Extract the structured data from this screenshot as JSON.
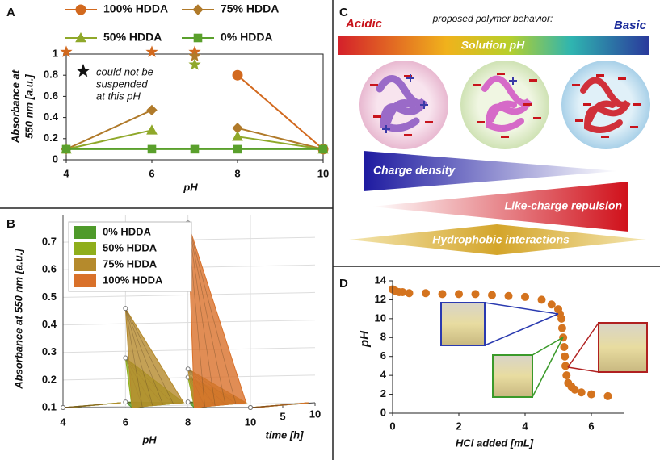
{
  "chart_data": [
    {
      "type": "line",
      "panel_label": "A",
      "x": [
        4,
        6,
        7,
        8,
        10
      ],
      "xlim": [
        4,
        10
      ],
      "xticks": [
        4,
        6,
        8,
        10
      ],
      "ylim": [
        0,
        1
      ],
      "yticks": [
        0,
        0.2,
        0.4,
        0.6,
        0.8,
        1
      ],
      "xlabel": "pH",
      "ylabel": [
        "Absorbance at",
        "550 nm [a.u.]"
      ],
      "annotation": [
        "could not be",
        "suspended",
        "at this pH"
      ],
      "series": [
        {
          "name": "100% HDDA",
          "color": "#d2691e",
          "marker": "circle",
          "values": [
            null,
            null,
            null,
            0.8,
            0.1
          ],
          "unsuspended": [
            1.02,
            1.02,
            1.02,
            null,
            null
          ]
        },
        {
          "name": "75% HDDA",
          "color": "#b07a2a",
          "marker": "diamond",
          "values": [
            0.1,
            0.47,
            null,
            0.3,
            0.1
          ],
          "unsuspended": [
            null,
            null,
            0.98,
            null,
            null
          ]
        },
        {
          "name": "50% HDDA",
          "color": "#8fa82a",
          "marker": "triangle",
          "values": [
            0.1,
            0.28,
            null,
            0.22,
            0.1
          ],
          "unsuspended": [
            null,
            null,
            0.9,
            null,
            null
          ]
        },
        {
          "name": "0% HDDA",
          "color": "#5aa02c",
          "marker": "square",
          "values": [
            0.1,
            0.1,
            0.1,
            0.1,
            0.1
          ],
          "unsuspended": [
            null,
            null,
            null,
            null,
            null
          ]
        }
      ]
    },
    {
      "type": "area3d",
      "panel_label": "B",
      "x": [
        4,
        6,
        8,
        10
      ],
      "xlim": [
        4,
        10
      ],
      "xticks": [
        4,
        6,
        8,
        10
      ],
      "ylim": [
        0.1,
        0.8
      ],
      "yticks": [
        0.1,
        0.2,
        0.3,
        0.4,
        0.5,
        0.6,
        0.7
      ],
      "zlim": [
        0,
        10
      ],
      "zticks": [
        5,
        10
      ],
      "xlabel": "pH",
      "ylabel": "Absorbance at 550 nm [a.u.]",
      "zlabel": "time [h]",
      "legend": "upper left",
      "grid": true,
      "series": [
        {
          "name": "0% HDDA",
          "color": "#4e9a2a",
          "values": [
            0.1,
            0.12,
            0.12,
            0.1
          ]
        },
        {
          "name": "50% HDDA",
          "color": "#8fae1b",
          "values": [
            0.1,
            0.28,
            0.21,
            0.1
          ]
        },
        {
          "name": "75% HDDA",
          "color": "#b58a2c",
          "values": [
            0.1,
            0.46,
            0.24,
            0.1
          ]
        },
        {
          "name": "100% HDDA",
          "color": "#d9712a",
          "values": [
            null,
            null,
            0.77,
            0.1
          ]
        }
      ]
    },
    {
      "type": "scatter",
      "panel_label": "D",
      "color": "#d4731e",
      "xlim": [
        0,
        7
      ],
      "xticks": [
        0,
        2,
        4,
        6
      ],
      "ylim": [
        0,
        14
      ],
      "yticks": [
        0,
        2,
        4,
        6,
        8,
        10,
        12,
        14
      ],
      "xlabel": "HCl added [mL]",
      "ylabel": "pH",
      "x": [
        0,
        0.05,
        0.1,
        0.2,
        0.3,
        0.5,
        1,
        1.5,
        2,
        2.5,
        3,
        3.5,
        4,
        4.5,
        4.8,
        5,
        5.05,
        5.1,
        5.12,
        5.15,
        5.18,
        5.2,
        5.22,
        5.25,
        5.3,
        5.4,
        5.5,
        5.7,
        6,
        6.5
      ],
      "values": [
        13.1,
        13,
        12.9,
        12.8,
        12.8,
        12.7,
        12.7,
        12.6,
        12.6,
        12.6,
        12.5,
        12.4,
        12.3,
        12,
        11.5,
        11,
        10.5,
        10,
        9,
        8,
        7,
        6,
        5,
        4,
        3.2,
        2.8,
        2.5,
        2.2,
        2,
        1.8
      ]
    }
  ],
  "panel_c": {
    "label": "C",
    "acidic": "Acidic",
    "caption": "proposed polymer behavior:",
    "basic": "Basic",
    "bar": "Solution pH",
    "charge": "Charge density",
    "repulsion": "Like-charge repulsion",
    "hydrophobic": "Hydrophobic interactions"
  }
}
